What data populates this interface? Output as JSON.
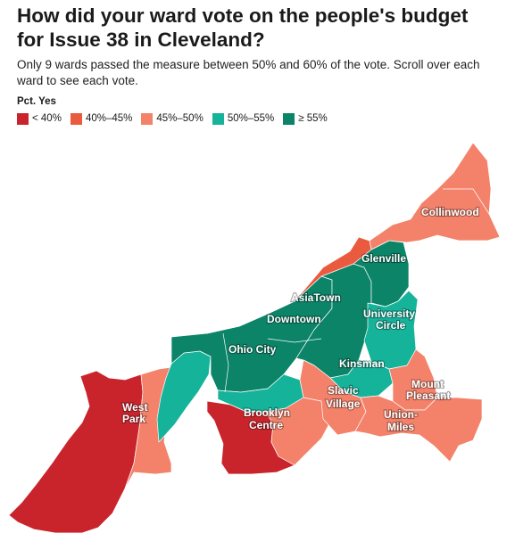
{
  "title": "How did your ward vote on the people's budget for Issue 38 in Cleveland?",
  "subtitle": "Only 9 wards passed the measure between 50% and 60% of the vote. Scroll over each ward to see each vote.",
  "legend": {
    "title": "Pct. Yes",
    "items": [
      {
        "label": "< 40%",
        "color": "#c9242b"
      },
      {
        "label": "40%–45%",
        "color": "#ea5a3f"
      },
      {
        "label": "45%–50%",
        "color": "#f4826a"
      },
      {
        "label": "50%–55%",
        "color": "#16b39b"
      },
      {
        "label": "≥ 55%",
        "color": "#0b8468"
      }
    ]
  },
  "map_labels": {
    "collinwood": "Collinwood",
    "glenville": "Glenville",
    "asiatown": "AsiaTown",
    "downtown": "Downtown",
    "university": "University",
    "circle": "Circle",
    "ohio_city": "Ohio City",
    "kinsman": "Kinsman",
    "mount": "Mount",
    "pleasant": "Pleasant",
    "slavic": "Slavic",
    "village": "Village",
    "west": "West",
    "park": "Park",
    "brooklyn": "Brooklyn",
    "centre": "Centre",
    "union": "Union-",
    "miles": "Miles"
  }
}
